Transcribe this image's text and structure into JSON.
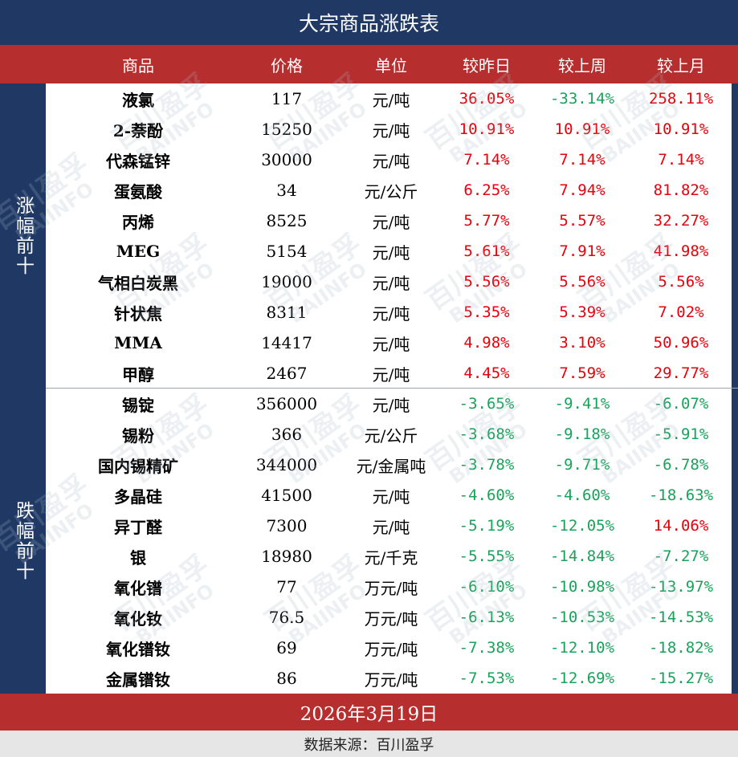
{
  "title": "大宗商品涨跌表",
  "headers": {
    "name": "商品",
    "price": "价格",
    "unit": "单位",
    "day": "较昨日",
    "week": "较上周",
    "month": "较上月"
  },
  "groups": {
    "up_label": "涨幅前十",
    "down_label": "跌幅前十"
  },
  "rows": [
    {
      "name": "液氯",
      "price": "117",
      "unit": "元/吨",
      "day": "36.05%",
      "week": "-33.14%",
      "month": "258.11%"
    },
    {
      "name": "2-萘酚",
      "price": "15250",
      "unit": "元/吨",
      "day": "10.91%",
      "week": "10.91%",
      "month": "10.91%"
    },
    {
      "name": "代森锰锌",
      "price": "30000",
      "unit": "元/吨",
      "day": "7.14%",
      "week": "7.14%",
      "month": "7.14%"
    },
    {
      "name": "蛋氨酸",
      "price": "34",
      "unit": "元/公斤",
      "day": "6.25%",
      "week": "7.94%",
      "month": "81.82%"
    },
    {
      "name": "丙烯",
      "price": "8525",
      "unit": "元/吨",
      "day": "5.77%",
      "week": "5.57%",
      "month": "32.27%"
    },
    {
      "name": "MEG",
      "price": "5154",
      "unit": "元/吨",
      "day": "5.61%",
      "week": "7.91%",
      "month": "41.98%"
    },
    {
      "name": "气相白炭黑",
      "price": "19000",
      "unit": "元/吨",
      "day": "5.56%",
      "week": "5.56%",
      "month": "5.56%"
    },
    {
      "name": "针状焦",
      "price": "8311",
      "unit": "元/吨",
      "day": "5.35%",
      "week": "5.39%",
      "month": "7.02%"
    },
    {
      "name": "MMA",
      "price": "14417",
      "unit": "元/吨",
      "day": "4.98%",
      "week": "3.10%",
      "month": "50.96%"
    },
    {
      "name": "甲醇",
      "price": "2467",
      "unit": "元/吨",
      "day": "4.45%",
      "week": "7.59%",
      "month": "29.77%"
    },
    {
      "name": "锡锭",
      "price": "356000",
      "unit": "元/吨",
      "day": "-3.65%",
      "week": "-9.41%",
      "month": "-6.07%"
    },
    {
      "name": "锡粉",
      "price": "366",
      "unit": "元/公斤",
      "day": "-3.68%",
      "week": "-9.18%",
      "month": "-5.91%"
    },
    {
      "name": "国内锡精矿",
      "price": "344000",
      "unit": "元/金属吨",
      "day": "-3.78%",
      "week": "-9.71%",
      "month": "-6.78%"
    },
    {
      "name": "多晶硅",
      "price": "41500",
      "unit": "元/吨",
      "day": "-4.60%",
      "week": "-4.60%",
      "month": "-18.63%"
    },
    {
      "name": "异丁醛",
      "price": "7300",
      "unit": "元/吨",
      "day": "-5.19%",
      "week": "-12.05%",
      "month": "14.06%"
    },
    {
      "name": "银",
      "price": "18980",
      "unit": "元/千克",
      "day": "-5.55%",
      "week": "-14.84%",
      "month": "-7.27%"
    },
    {
      "name": "氧化镨",
      "price": "77",
      "unit": "万元/吨",
      "day": "-6.10%",
      "week": "-10.98%",
      "month": "-13.97%"
    },
    {
      "name": "氧化钕",
      "price": "76.5",
      "unit": "万元/吨",
      "day": "-6.13%",
      "week": "-10.53%",
      "month": "-14.53%"
    },
    {
      "name": "氧化镨钕",
      "price": "69",
      "unit": "万元/吨",
      "day": "-7.38%",
      "week": "-12.10%",
      "month": "-18.82%"
    },
    {
      "name": "金属镨钕",
      "price": "86",
      "unit": "万元/吨",
      "day": "-7.53%",
      "week": "-12.69%",
      "month": "-15.27%"
    }
  ],
  "date": "2026年3月19日",
  "source": "数据来源：百川盈孚",
  "watermark": {
    "cn": "百川盈孚",
    "en": "BAIINFO"
  },
  "colors": {
    "title_bg": "#1f3864",
    "header_bg": "#b72e2e",
    "positive": "#e8000b",
    "negative": "#18a35a"
  }
}
